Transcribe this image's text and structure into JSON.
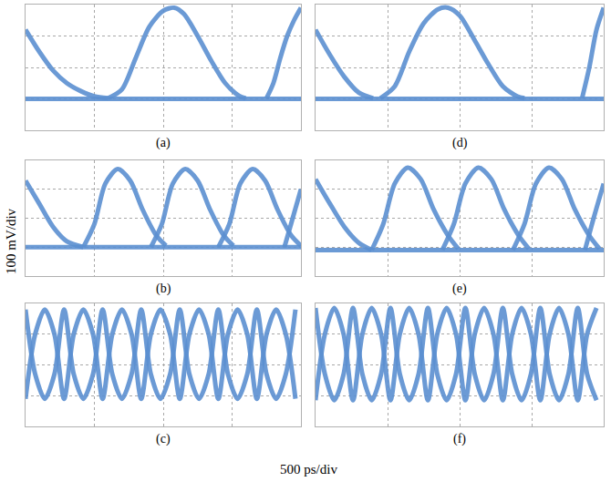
{
  "figure": {
    "xlabel": "500 ps/div",
    "ylabel": "100 mV/div"
  },
  "chart_data": [
    {
      "type": "line",
      "title": "(a)",
      "color": "#5b8fd0",
      "grid": true,
      "tick_labels": false,
      "xlim": [
        0,
        2000
      ],
      "ylim": [
        0,
        400
      ],
      "xticks": [
        0,
        500,
        1000,
        1500,
        2000
      ],
      "yticks": [
        0,
        100,
        200,
        300,
        400
      ],
      "series": [
        {
          "x": [
            0,
            100,
            200,
            300,
            400,
            500,
            600
          ],
          "values": [
            320,
            250,
            190,
            150,
            125,
            108,
            102
          ]
        },
        {
          "x": [
            600,
            700,
            800,
            900,
            1000,
            1080,
            1150,
            1250,
            1350,
            1450,
            1550,
            1600
          ],
          "values": [
            102,
            130,
            230,
            330,
            380,
            390,
            370,
            300,
            220,
            150,
            110,
            102
          ]
        },
        {
          "x": [
            1750,
            1800,
            1850,
            1900,
            1950,
            2000
          ],
          "values": [
            102,
            150,
            230,
            300,
            350,
            390
          ]
        },
        {
          "x": [
            0,
            2000
          ],
          "values": [
            100,
            100
          ]
        }
      ]
    },
    {
      "type": "line",
      "title": "(b)",
      "color": "#5b8fd0",
      "grid": true,
      "tick_labels": false,
      "xlim": [
        0,
        2000
      ],
      "ylim": [
        0,
        400
      ],
      "xticks": [
        0,
        500,
        1000,
        1500,
        2000
      ],
      "yticks": [
        0,
        100,
        200,
        300,
        400
      ],
      "series": [
        {
          "x": [
            0,
            100,
            200,
            300,
            420
          ],
          "values": [
            330,
            250,
            170,
            120,
            100
          ]
        },
        {
          "x": [
            420,
            500,
            580,
            670,
            760,
            850,
            950,
            1020
          ],
          "values": [
            100,
            180,
            320,
            370,
            330,
            230,
            140,
            105
          ]
        },
        {
          "x": [
            910,
            990,
            1070,
            1160,
            1250,
            1340,
            1440,
            1510
          ],
          "values": [
            100,
            180,
            320,
            370,
            330,
            230,
            140,
            105
          ]
        },
        {
          "x": [
            1400,
            1480,
            1560,
            1650,
            1740,
            1830,
            1930,
            2000
          ],
          "values": [
            100,
            180,
            320,
            370,
            330,
            230,
            140,
            105
          ]
        },
        {
          "x": [
            1880,
            1940,
            2000
          ],
          "values": [
            100,
            200,
            300
          ]
        },
        {
          "x": [
            0,
            2000
          ],
          "values": [
            100,
            100
          ]
        }
      ]
    },
    {
      "type": "line",
      "title": "(c)",
      "color": "#5b8fd0",
      "grid": true,
      "tick_labels": false,
      "xlim": [
        0,
        2000
      ],
      "ylim": [
        0,
        400
      ],
      "xticks": [
        0,
        500,
        1000,
        1500,
        2000
      ],
      "yticks": [
        0,
        100,
        200,
        300,
        400
      ],
      "series": [
        {
          "x": [
            0,
            70,
            140,
            210,
            280,
            350,
            420,
            490,
            560,
            630,
            700,
            770,
            840,
            910,
            980,
            1050,
            1120,
            1190,
            1260,
            1330,
            1400,
            1470,
            1540,
            1610,
            1680,
            1750,
            1820,
            1890,
            1960
          ],
          "values": [
            90,
            300,
            380,
            300,
            90,
            300,
            380,
            300,
            90,
            300,
            380,
            300,
            90,
            300,
            380,
            300,
            90,
            300,
            380,
            300,
            90,
            300,
            380,
            300,
            90,
            300,
            380,
            300,
            90
          ]
        },
        {
          "x": [
            0,
            70,
            140,
            210,
            280,
            350,
            420,
            490,
            560,
            630,
            700,
            770,
            840,
            910,
            980,
            1050,
            1120,
            1190,
            1260,
            1330,
            1400,
            1470,
            1540,
            1610,
            1680,
            1750,
            1820,
            1890,
            1960
          ],
          "values": [
            380,
            170,
            90,
            170,
            380,
            170,
            90,
            170,
            380,
            170,
            90,
            170,
            380,
            170,
            90,
            170,
            380,
            170,
            90,
            170,
            380,
            170,
            90,
            170,
            380,
            170,
            90,
            170,
            380
          ]
        }
      ]
    },
    {
      "type": "line",
      "title": "(d)",
      "color": "#5b8fd0",
      "grid": true,
      "tick_labels": false,
      "xlim": [
        0,
        2000
      ],
      "ylim": [
        0,
        400
      ],
      "xticks": [
        0,
        500,
        1000,
        1500,
        2000
      ],
      "yticks": [
        0,
        100,
        200,
        300,
        400
      ],
      "series": [
        {
          "x": [
            0,
            100,
            200,
            300,
            400
          ],
          "values": [
            320,
            240,
            170,
            120,
            102
          ]
        },
        {
          "x": [
            450,
            550,
            650,
            750,
            850,
            920,
            1000,
            1100,
            1200,
            1300,
            1400,
            1450
          ],
          "values": [
            102,
            140,
            250,
            340,
            385,
            390,
            365,
            290,
            210,
            140,
            108,
            102
          ]
        },
        {
          "x": [
            1850,
            1900,
            1950,
            2000
          ],
          "values": [
            102,
            200,
            320,
            390
          ]
        },
        {
          "x": [
            0,
            2000
          ],
          "values": [
            100,
            100
          ]
        }
      ]
    },
    {
      "type": "line",
      "title": "(e)",
      "color": "#5b8fd0",
      "grid": true,
      "tick_labels": false,
      "xlim": [
        0,
        2000
      ],
      "ylim": [
        0,
        400
      ],
      "xticks": [
        0,
        500,
        1000,
        1500,
        2000
      ],
      "yticks": [
        0,
        100,
        200,
        300,
        400
      ],
      "series": [
        {
          "x": [
            0,
            100,
            200,
            300,
            390
          ],
          "values": [
            335,
            250,
            170,
            115,
            90
          ]
        },
        {
          "x": [
            390,
            470,
            550,
            640,
            730,
            820,
            920,
            990
          ],
          "values": [
            90,
            180,
            320,
            375,
            335,
            230,
            140,
            95
          ]
        },
        {
          "x": [
            880,
            960,
            1040,
            1130,
            1220,
            1310,
            1410,
            1480
          ],
          "values": [
            90,
            180,
            320,
            375,
            335,
            230,
            140,
            95
          ]
        },
        {
          "x": [
            1370,
            1450,
            1530,
            1620,
            1710,
            1800,
            1900,
            1970
          ],
          "values": [
            90,
            180,
            320,
            375,
            335,
            230,
            140,
            95
          ]
        },
        {
          "x": [
            1870,
            1930,
            2000
          ],
          "values": [
            90,
            200,
            320
          ]
        },
        {
          "x": [
            0,
            2000
          ],
          "values": [
            90,
            90
          ]
        }
      ]
    },
    {
      "type": "line",
      "title": "(f)",
      "color": "#5b8fd0",
      "grid": true,
      "tick_labels": false,
      "xlim": [
        0,
        2000
      ],
      "ylim": [
        0,
        400
      ],
      "xticks": [
        0,
        500,
        1000,
        1500,
        2000
      ],
      "yticks": [
        0,
        100,
        200,
        300,
        400
      ],
      "series": [
        {
          "x": [
            0,
            65,
            130,
            195,
            260,
            325,
            390,
            455,
            520,
            585,
            650,
            715,
            780,
            845,
            910,
            975,
            1040,
            1105,
            1170,
            1235,
            1300,
            1365,
            1430,
            1495,
            1560,
            1625,
            1690,
            1755,
            1820,
            1885,
            1950
          ],
          "values": [
            85,
            300,
            385,
            300,
            85,
            300,
            385,
            300,
            85,
            300,
            385,
            300,
            85,
            300,
            385,
            300,
            85,
            300,
            385,
            300,
            85,
            300,
            385,
            300,
            85,
            300,
            385,
            300,
            85,
            300,
            385
          ]
        },
        {
          "x": [
            0,
            65,
            130,
            195,
            260,
            325,
            390,
            455,
            520,
            585,
            650,
            715,
            780,
            845,
            910,
            975,
            1040,
            1105,
            1170,
            1235,
            1300,
            1365,
            1430,
            1495,
            1560,
            1625,
            1690,
            1755,
            1820,
            1885,
            1950
          ],
          "values": [
            385,
            170,
            85,
            170,
            385,
            170,
            85,
            170,
            385,
            170,
            85,
            170,
            385,
            170,
            85,
            170,
            385,
            170,
            85,
            170,
            385,
            170,
            85,
            170,
            385,
            170,
            85,
            170,
            385,
            170,
            85
          ]
        }
      ]
    }
  ]
}
